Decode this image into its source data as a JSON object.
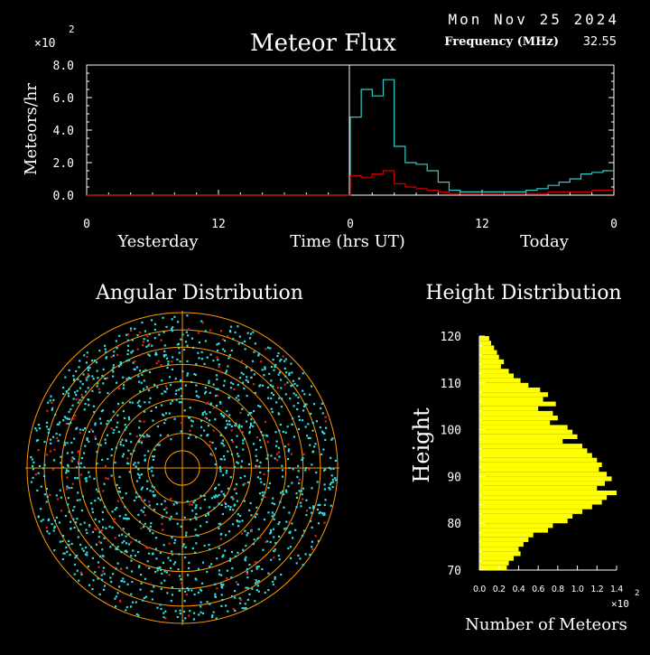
{
  "header": {
    "date": "Mon Nov 25 2024",
    "frequency_label": "Frequency (MHz)",
    "frequency_value": "32.55"
  },
  "colors": {
    "background": "#000000",
    "axis": "#ffffff",
    "total_series": "#33cccc",
    "overhead_series": "#cc0000",
    "polar_rings": "#ff9900",
    "polar_points": "#33dddd",
    "polar_points_alt": "#dd2222",
    "height_bars": "#ffff00"
  },
  "chart_data": [
    {
      "type": "line",
      "title": "Meteor Flux",
      "ylabel": "Meteors/hr",
      "xlabel": "Time (hrs UT)",
      "y_multiplier": "×10",
      "y_multiplier_exp": "2",
      "ylim": [
        0,
        8
      ],
      "yticks": [
        "0.0",
        "2.0",
        "4.0",
        "6.0",
        "8.0"
      ],
      "xticks": [
        "0",
        "12",
        "0",
        "12",
        "0"
      ],
      "day_labels": [
        "Yesterday",
        "Today"
      ],
      "x_hours": [
        0,
        1,
        2,
        3,
        4,
        5,
        6,
        7,
        8,
        9,
        10,
        11,
        12,
        13,
        14,
        15,
        16,
        17,
        18,
        19,
        20,
        21,
        22,
        23,
        24,
        25,
        26,
        27,
        28,
        29,
        30,
        31,
        32,
        33,
        34,
        35,
        36,
        37,
        38,
        39,
        40,
        41,
        42,
        43,
        44,
        45,
        46,
        47,
        48
      ],
      "series": [
        {
          "values": [
            0,
            0,
            0,
            0,
            0,
            0,
            0,
            0,
            0,
            0,
            0,
            0,
            0,
            0,
            0,
            0,
            0,
            0,
            0,
            0,
            0,
            0,
            0,
            0,
            4.8,
            6.5,
            6.1,
            7.1,
            3.0,
            2.0,
            1.9,
            1.5,
            0.8,
            0.3,
            0.2,
            0.2,
            0.2,
            0.2,
            0.2,
            0.2,
            0.3,
            0.4,
            0.6,
            0.8,
            1.0,
            1.3,
            1.4,
            1.5,
            1.6
          ]
        },
        {
          "values": [
            0,
            0,
            0,
            0,
            0,
            0,
            0,
            0,
            0,
            0,
            0,
            0,
            0,
            0,
            0,
            0,
            0,
            0,
            0,
            0,
            0,
            0,
            0,
            0,
            1.2,
            1.1,
            1.3,
            1.5,
            0.7,
            0.5,
            0.4,
            0.3,
            0.2,
            0.1,
            0.1,
            0.1,
            0.1,
            0.1,
            0.1,
            0.1,
            0.1,
            0.1,
            0.2,
            0.2,
            0.2,
            0.2,
            0.3,
            0.3,
            0.3
          ]
        }
      ]
    },
    {
      "type": "scatter",
      "title": "Angular Distribution",
      "rings": 9,
      "note": "polar scatter of meteor radiant positions"
    },
    {
      "type": "bar",
      "title": "Height Distribution",
      "ylabel": "Height",
      "xlabel": "Number of Meteors",
      "x_multiplier": "×10",
      "x_multiplier_exp": "2",
      "xlim": [
        0,
        1.4
      ],
      "xticks": [
        "0.0",
        "0.2",
        "0.4",
        "0.6",
        "0.8",
        "1.0",
        "1.2",
        "1.4"
      ],
      "ylim": [
        70,
        120
      ],
      "yticks": [
        "70",
        "80",
        "90",
        "100",
        "110",
        "120"
      ],
      "heights": [
        120,
        119,
        118,
        117,
        116,
        115,
        114,
        113,
        112,
        111,
        110,
        109,
        108,
        107,
        106,
        105,
        104,
        103,
        102,
        101,
        100,
        99,
        98,
        97,
        96,
        95,
        94,
        93,
        92,
        91,
        90,
        89,
        88,
        87,
        86,
        85,
        84,
        83,
        82,
        81,
        80,
        79,
        78,
        77,
        76,
        75,
        74,
        73,
        72,
        71
      ],
      "counts": [
        0.1,
        0.12,
        0.15,
        0.18,
        0.2,
        0.25,
        0.22,
        0.3,
        0.35,
        0.42,
        0.5,
        0.62,
        0.7,
        0.65,
        0.78,
        0.6,
        0.75,
        0.8,
        0.72,
        0.9,
        0.95,
        1.0,
        0.85,
        1.05,
        1.1,
        1.15,
        1.2,
        1.25,
        1.22,
        1.3,
        1.35,
        1.28,
        1.2,
        1.4,
        1.3,
        1.25,
        1.15,
        1.05,
        0.95,
        0.9,
        0.75,
        0.7,
        0.55,
        0.5,
        0.45,
        0.4,
        0.42,
        0.35,
        0.3,
        0.28
      ]
    }
  ]
}
